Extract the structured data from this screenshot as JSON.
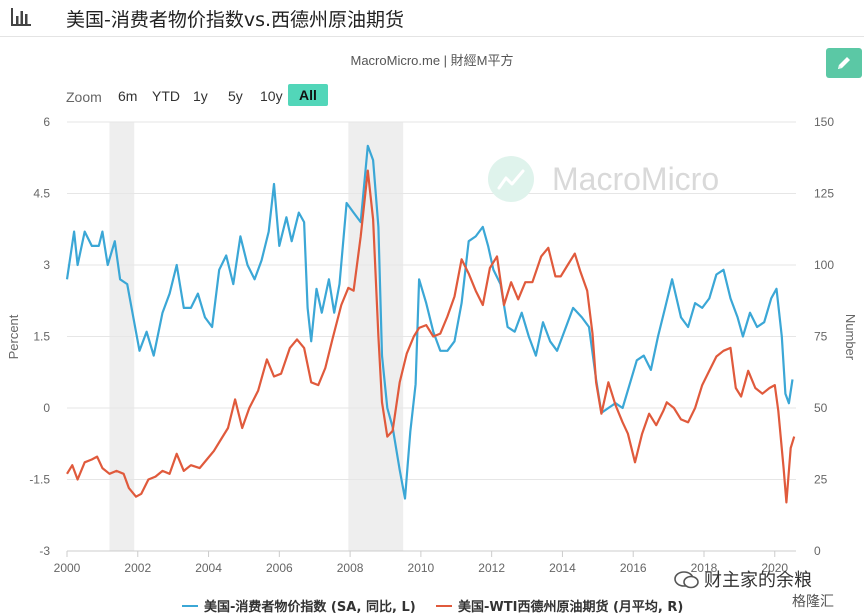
{
  "header": {
    "title": "美国-消费者物价指数vs.西德州原油期货",
    "chart_icon": "bar-chart-icon"
  },
  "source": "MacroMicro.me | 財經M平方",
  "toolbar": {
    "zoom_label": "Zoom",
    "zoom_options": [
      "6m",
      "YTD",
      "1y",
      "5y",
      "10y",
      "All"
    ],
    "active": "All",
    "edit_icon": "pencil-icon",
    "edit_color": "#5bc8a5"
  },
  "watermark": "MacroMicro",
  "corner_stamp": {
    "name": "财主家的余粮",
    "sub": "格隆汇"
  },
  "chart_data": {
    "type": "line",
    "y_left": {
      "label": "Percent",
      "range": [
        -3,
        6
      ],
      "ticks": [
        "-3",
        "-1.5",
        "0",
        "1.5",
        "3",
        "4.5",
        "6"
      ]
    },
    "y_right": {
      "label": "Number",
      "range": [
        0,
        150
      ],
      "ticks": [
        "0",
        "25",
        "50",
        "75",
        "100",
        "125",
        "150"
      ]
    },
    "x": {
      "range": [
        2000,
        2020.6
      ],
      "ticks": [
        "2000",
        "2002",
        "2004",
        "2006",
        "2008",
        "2010",
        "2012",
        "2014",
        "2016",
        "2018",
        "2020"
      ]
    },
    "recessions": [
      [
        2001.2,
        2001.9
      ],
      [
        2007.95,
        2009.5
      ]
    ],
    "grid": true,
    "series": [
      {
        "name": "美国-消费者物价指数 (SA, 同比, L)",
        "axis": "left",
        "color": "#3ba7d6",
        "points": [
          [
            2000.0,
            2.7
          ],
          [
            2000.2,
            3.7
          ],
          [
            2000.3,
            3.0
          ],
          [
            2000.5,
            3.7
          ],
          [
            2000.7,
            3.4
          ],
          [
            2000.9,
            3.4
          ],
          [
            2001.0,
            3.7
          ],
          [
            2001.15,
            3.0
          ],
          [
            2001.35,
            3.5
          ],
          [
            2001.5,
            2.7
          ],
          [
            2001.7,
            2.6
          ],
          [
            2001.9,
            1.8
          ],
          [
            2002.05,
            1.2
          ],
          [
            2002.25,
            1.6
          ],
          [
            2002.45,
            1.1
          ],
          [
            2002.7,
            2.0
          ],
          [
            2002.9,
            2.4
          ],
          [
            2003.1,
            3.0
          ],
          [
            2003.3,
            2.1
          ],
          [
            2003.5,
            2.1
          ],
          [
            2003.7,
            2.4
          ],
          [
            2003.9,
            1.9
          ],
          [
            2004.1,
            1.7
          ],
          [
            2004.3,
            2.9
          ],
          [
            2004.5,
            3.2
          ],
          [
            2004.7,
            2.6
          ],
          [
            2004.9,
            3.6
          ],
          [
            2005.1,
            3.0
          ],
          [
            2005.3,
            2.7
          ],
          [
            2005.5,
            3.1
          ],
          [
            2005.7,
            3.7
          ],
          [
            2005.85,
            4.7
          ],
          [
            2006.0,
            3.4
          ],
          [
            2006.2,
            4.0
          ],
          [
            2006.35,
            3.5
          ],
          [
            2006.55,
            4.1
          ],
          [
            2006.7,
            3.9
          ],
          [
            2006.8,
            2.1
          ],
          [
            2006.9,
            1.4
          ],
          [
            2007.05,
            2.5
          ],
          [
            2007.2,
            2.0
          ],
          [
            2007.4,
            2.7
          ],
          [
            2007.55,
            2.0
          ],
          [
            2007.7,
            2.6
          ],
          [
            2007.9,
            4.3
          ],
          [
            2008.1,
            4.1
          ],
          [
            2008.3,
            3.9
          ],
          [
            2008.5,
            5.5
          ],
          [
            2008.65,
            5.2
          ],
          [
            2008.8,
            3.8
          ],
          [
            2008.9,
            1.1
          ],
          [
            2009.05,
            0.0
          ],
          [
            2009.2,
            -0.4
          ],
          [
            2009.4,
            -1.3
          ],
          [
            2009.55,
            -1.9
          ],
          [
            2009.7,
            -0.5
          ],
          [
            2009.85,
            0.5
          ],
          [
            2009.95,
            2.7
          ],
          [
            2010.15,
            2.2
          ],
          [
            2010.35,
            1.6
          ],
          [
            2010.55,
            1.2
          ],
          [
            2010.75,
            1.2
          ],
          [
            2010.95,
            1.4
          ],
          [
            2011.15,
            2.2
          ],
          [
            2011.35,
            3.5
          ],
          [
            2011.55,
            3.6
          ],
          [
            2011.75,
            3.8
          ],
          [
            2011.9,
            3.4
          ],
          [
            2012.05,
            2.9
          ],
          [
            2012.25,
            2.6
          ],
          [
            2012.45,
            1.7
          ],
          [
            2012.65,
            1.6
          ],
          [
            2012.85,
            2.0
          ],
          [
            2013.05,
            1.5
          ],
          [
            2013.25,
            1.1
          ],
          [
            2013.45,
            1.8
          ],
          [
            2013.65,
            1.4
          ],
          [
            2013.85,
            1.2
          ],
          [
            2014.05,
            1.6
          ],
          [
            2014.3,
            2.1
          ],
          [
            2014.55,
            1.9
          ],
          [
            2014.75,
            1.7
          ],
          [
            2014.95,
            0.6
          ],
          [
            2015.1,
            -0.1
          ],
          [
            2015.3,
            0.0
          ],
          [
            2015.5,
            0.1
          ],
          [
            2015.7,
            0.0
          ],
          [
            2015.9,
            0.5
          ],
          [
            2016.1,
            1.0
          ],
          [
            2016.3,
            1.1
          ],
          [
            2016.5,
            0.8
          ],
          [
            2016.7,
            1.5
          ],
          [
            2016.9,
            2.1
          ],
          [
            2017.1,
            2.7
          ],
          [
            2017.35,
            1.9
          ],
          [
            2017.55,
            1.7
          ],
          [
            2017.75,
            2.2
          ],
          [
            2017.95,
            2.1
          ],
          [
            2018.15,
            2.3
          ],
          [
            2018.35,
            2.8
          ],
          [
            2018.55,
            2.9
          ],
          [
            2018.75,
            2.3
          ],
          [
            2018.95,
            1.9
          ],
          [
            2019.1,
            1.5
          ],
          [
            2019.3,
            2.0
          ],
          [
            2019.5,
            1.7
          ],
          [
            2019.7,
            1.8
          ],
          [
            2019.9,
            2.3
          ],
          [
            2020.05,
            2.5
          ],
          [
            2020.2,
            1.5
          ],
          [
            2020.3,
            0.3
          ],
          [
            2020.4,
            0.1
          ],
          [
            2020.5,
            0.6
          ]
        ]
      },
      {
        "name": "美国-WTI西德州原油期货 (月平均, R)",
        "axis": "right",
        "color": "#e05a3c",
        "points": [
          [
            2000.0,
            27
          ],
          [
            2000.15,
            30
          ],
          [
            2000.3,
            25
          ],
          [
            2000.5,
            31
          ],
          [
            2000.7,
            32
          ],
          [
            2000.85,
            33
          ],
          [
            2001.0,
            29
          ],
          [
            2001.2,
            27
          ],
          [
            2001.4,
            28
          ],
          [
            2001.6,
            27
          ],
          [
            2001.75,
            22
          ],
          [
            2001.95,
            19
          ],
          [
            2002.1,
            20
          ],
          [
            2002.3,
            25
          ],
          [
            2002.5,
            26
          ],
          [
            2002.7,
            28
          ],
          [
            2002.9,
            27
          ],
          [
            2003.1,
            34
          ],
          [
            2003.3,
            28
          ],
          [
            2003.5,
            30
          ],
          [
            2003.75,
            29
          ],
          [
            2003.95,
            32
          ],
          [
            2004.15,
            35
          ],
          [
            2004.35,
            39
          ],
          [
            2004.55,
            43
          ],
          [
            2004.75,
            53
          ],
          [
            2004.95,
            43
          ],
          [
            2005.15,
            50
          ],
          [
            2005.4,
            56
          ],
          [
            2005.65,
            67
          ],
          [
            2005.85,
            61
          ],
          [
            2006.05,
            62
          ],
          [
            2006.3,
            71
          ],
          [
            2006.5,
            74
          ],
          [
            2006.7,
            71
          ],
          [
            2006.9,
            59
          ],
          [
            2007.1,
            58
          ],
          [
            2007.3,
            64
          ],
          [
            2007.5,
            74
          ],
          [
            2007.75,
            86
          ],
          [
            2007.95,
            92
          ],
          [
            2008.1,
            91
          ],
          [
            2008.3,
            110
          ],
          [
            2008.5,
            133
          ],
          [
            2008.65,
            116
          ],
          [
            2008.8,
            75
          ],
          [
            2008.9,
            52
          ],
          [
            2009.05,
            40
          ],
          [
            2009.2,
            42
          ],
          [
            2009.4,
            59
          ],
          [
            2009.6,
            69
          ],
          [
            2009.8,
            75
          ],
          [
            2009.95,
            78
          ],
          [
            2010.15,
            79
          ],
          [
            2010.35,
            75
          ],
          [
            2010.55,
            76
          ],
          [
            2010.75,
            82
          ],
          [
            2010.95,
            89
          ],
          [
            2011.15,
            102
          ],
          [
            2011.35,
            97
          ],
          [
            2011.55,
            91
          ],
          [
            2011.75,
            86
          ],
          [
            2011.95,
            99
          ],
          [
            2012.15,
            103
          ],
          [
            2012.35,
            86
          ],
          [
            2012.55,
            94
          ],
          [
            2012.75,
            88
          ],
          [
            2012.95,
            94
          ],
          [
            2013.15,
            94
          ],
          [
            2013.4,
            103
          ],
          [
            2013.6,
            106
          ],
          [
            2013.8,
            96
          ],
          [
            2013.95,
            96
          ],
          [
            2014.15,
            100
          ],
          [
            2014.35,
            104
          ],
          [
            2014.5,
            98
          ],
          [
            2014.7,
            91
          ],
          [
            2014.85,
            76
          ],
          [
            2014.95,
            59
          ],
          [
            2015.1,
            48
          ],
          [
            2015.3,
            59
          ],
          [
            2015.5,
            51
          ],
          [
            2015.7,
            45
          ],
          [
            2015.85,
            41
          ],
          [
            2016.05,
            31
          ],
          [
            2016.25,
            41
          ],
          [
            2016.45,
            48
          ],
          [
            2016.65,
            44
          ],
          [
            2016.85,
            49
          ],
          [
            2016.95,
            52
          ],
          [
            2017.15,
            50
          ],
          [
            2017.35,
            46
          ],
          [
            2017.55,
            45
          ],
          [
            2017.75,
            50
          ],
          [
            2017.95,
            58
          ],
          [
            2018.15,
            63
          ],
          [
            2018.35,
            68
          ],
          [
            2018.55,
            70
          ],
          [
            2018.75,
            71
          ],
          [
            2018.9,
            57
          ],
          [
            2019.05,
            54
          ],
          [
            2019.25,
            63
          ],
          [
            2019.45,
            57
          ],
          [
            2019.65,
            55
          ],
          [
            2019.85,
            57
          ],
          [
            2020.0,
            58
          ],
          [
            2020.1,
            49
          ],
          [
            2020.25,
            29
          ],
          [
            2020.33,
            17
          ],
          [
            2020.45,
            36
          ],
          [
            2020.55,
            40
          ]
        ]
      }
    ]
  }
}
